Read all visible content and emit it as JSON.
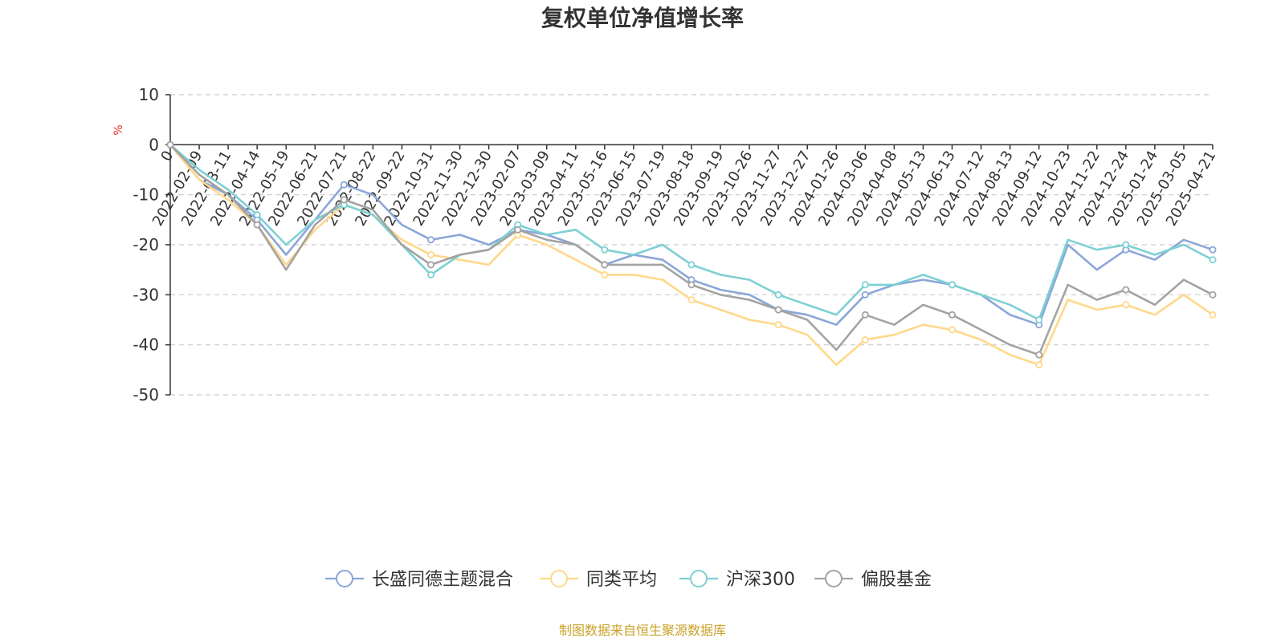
{
  "chart_data": {
    "type": "line",
    "title": "复权单位净值增长率",
    "ylabel": "%",
    "xlabel": "",
    "ylim": [
      -50,
      10
    ],
    "yticks": [
      10,
      0,
      -10,
      -20,
      -30,
      -40,
      -50
    ],
    "x_tick_labels": [
      "0",
      "2022-02-09",
      "2022-03-11",
      "2022-04-14",
      "2022-05-19",
      "2022-06-21",
      "2022-07-21",
      "2022-08-22",
      "2022-09-22",
      "2022-10-31",
      "2022-11-30",
      "2022-12-30",
      "2023-02-07",
      "2023-03-09",
      "2023-04-11",
      "2023-05-16",
      "2023-06-15",
      "2023-07-19",
      "2023-08-18",
      "2023-09-19",
      "2023-10-26",
      "2023-11-27",
      "2023-12-27",
      "2024-01-26",
      "2024-03-06",
      "2024-04-08",
      "2024-05-13",
      "2024-06-13",
      "2024-07-12",
      "2024-08-13",
      "2024-09-12",
      "2024-10-23",
      "2024-11-22",
      "2024-12-24",
      "2025-01-24",
      "2025-03-05",
      "2025-04-21"
    ],
    "grid": true,
    "legend_position": "bottom",
    "series": [
      {
        "name": "长盛同德主题混合",
        "color": "#8ba6d8",
        "values": [
          0,
          -7,
          -10,
          -15,
          -22,
          -15,
          -8,
          -10,
          -16,
          -19,
          -18,
          -20,
          -17,
          -18,
          -20,
          -24,
          -22,
          -23,
          -27,
          -29,
          -30,
          -33,
          -34,
          -36,
          -30,
          -28,
          -27,
          -28,
          -30,
          -34,
          -36,
          -20,
          -25,
          -21,
          -23,
          -19,
          -21
        ]
      },
      {
        "name": "同类平均",
        "color": "#ffd88a",
        "values": [
          0,
          -7,
          -11,
          -16,
          -24,
          -17,
          -12,
          -14,
          -19,
          -22,
          -23,
          -24,
          -18,
          -20,
          -23,
          -26,
          -26,
          -27,
          -31,
          -33,
          -35,
          -36,
          -38,
          -44,
          -39,
          -38,
          -36,
          -37,
          -39,
          -42,
          -44,
          -31,
          -33,
          -32,
          -34,
          -30,
          -34
        ]
      },
      {
        "name": "沪深300",
        "color": "#7dd0d4",
        "values": [
          0,
          -5,
          -9,
          -14,
          -20,
          -15,
          -12,
          -14,
          -20,
          -26,
          -22,
          -21,
          -16,
          -18,
          -17,
          -21,
          -22,
          -20,
          -24,
          -26,
          -27,
          -30,
          -32,
          -34,
          -28,
          -28,
          -26,
          -28,
          -30,
          -32,
          -35,
          -19,
          -21,
          -20,
          -22,
          -20,
          -23
        ]
      },
      {
        "name": "偏股基金",
        "color": "#a3a3a3",
        "values": [
          0,
          -6,
          -10,
          -16,
          -25,
          -16,
          -11,
          -13,
          -20,
          -24,
          -22,
          -21,
          -17,
          -19,
          -20,
          -24,
          -24,
          -24,
          -28,
          -30,
          -31,
          -33,
          -35,
          -41,
          -34,
          -36,
          -32,
          -34,
          -37,
          -40,
          -42,
          -28,
          -31,
          -29,
          -32,
          -27,
          -30
        ]
      }
    ]
  },
  "source_note": "制图数据来自恒生聚源数据库"
}
